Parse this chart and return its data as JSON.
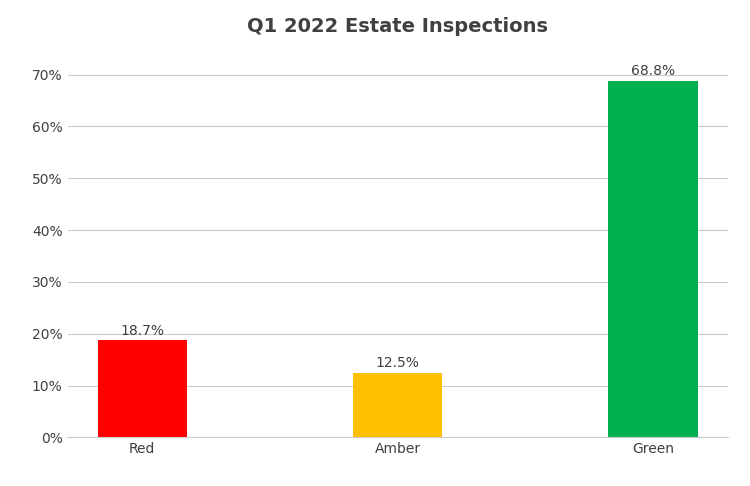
{
  "title": "Q1 2022 Estate Inspections",
  "categories": [
    "Red",
    "Amber",
    "Green"
  ],
  "values": [
    18.7,
    12.5,
    68.8
  ],
  "bar_colors": [
    "#ff0000",
    "#ffc000",
    "#00b050"
  ],
  "bar_labels": [
    "18.7%",
    "12.5%",
    "68.8%"
  ],
  "ylim": [
    0,
    75
  ],
  "yticks": [
    0,
    10,
    20,
    30,
    40,
    50,
    60,
    70
  ],
  "ytick_labels": [
    "0%",
    "10%",
    "20%",
    "30%",
    "40%",
    "50%",
    "60%",
    "70%"
  ],
  "title_fontsize": 14,
  "tick_fontsize": 10,
  "bar_label_fontsize": 10,
  "bar_width": 0.35,
  "background_color": "#ffffff",
  "grid_color": "#cccccc",
  "text_color": "#404040"
}
